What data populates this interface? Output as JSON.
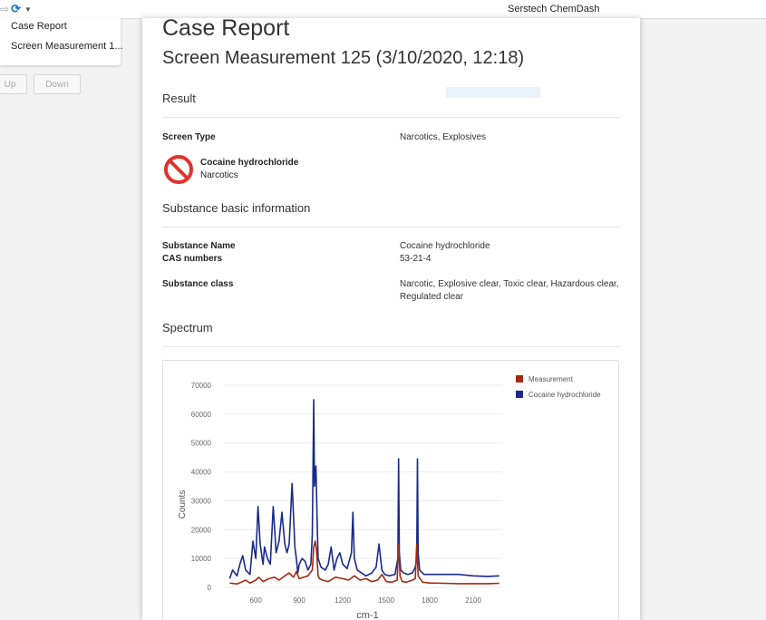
{
  "titlebar": {
    "icons": [
      "back-forward-icon",
      "app-logo-icon",
      "dropdown-icon"
    ],
    "title": "Serstech ChemDash"
  },
  "left_panel": {
    "items": [
      {
        "label": "Case Report"
      },
      {
        "label": "Screen Measurement 1..."
      }
    ],
    "up_label": "Up",
    "down_label": "Down"
  },
  "report": {
    "title": "Case Report",
    "subtitle": "Screen Measurement 125 (3/10/2020, 12:18)",
    "result": {
      "heading": "Result",
      "screen_type_label": "Screen Type",
      "screen_type_value": "Narcotics, Explosives",
      "substance_name": "Cocaine hydrochloride",
      "substance_class": "Narcotics",
      "status_icon": "prohibited-icon",
      "status_color": "#e0332e"
    },
    "basic_info": {
      "heading": "Substance basic information",
      "name_label": "Substance Name",
      "name_value": "Cocaine hydrochloride",
      "cas_label": "CAS numbers",
      "cas_value": "53-21-4",
      "class_label": "Substance class",
      "class_value": "Narcotic, Explosive clear, Toxic clear, Hazardous clear, Regulated clear"
    },
    "spectrum": {
      "heading": "Spectrum"
    }
  },
  "chart_data": {
    "type": "line",
    "xlabel": "cm-1",
    "ylabel": "Counts",
    "xlim": [
      380,
      2300
    ],
    "ylim": [
      0,
      70000
    ],
    "xticks": [
      600,
      900,
      1200,
      1500,
      1800,
      2100
    ],
    "yticks": [
      0,
      10000,
      20000,
      30000,
      40000,
      50000,
      60000,
      70000
    ],
    "grid": true,
    "legend_position": "top-right",
    "series": [
      {
        "name": "Measurement",
        "color": "#a32a12",
        "x": [
          420,
          470,
          500,
          530,
          560,
          600,
          620,
          650,
          690,
          730,
          760,
          800,
          830,
          860,
          880,
          900,
          930,
          960,
          990,
          1000,
          1010,
          1020,
          1030,
          1040,
          1060,
          1100,
          1150,
          1200,
          1240,
          1280,
          1320,
          1360,
          1400,
          1440,
          1470,
          1500,
          1540,
          1575,
          1585,
          1595,
          1610,
          1640,
          1680,
          1700,
          1710,
          1720,
          1750,
          1800,
          1900,
          2000,
          2100,
          2200,
          2280
        ],
        "y": [
          1500,
          1200,
          1800,
          2500,
          1500,
          2500,
          3500,
          2000,
          3000,
          3500,
          2500,
          4000,
          5000,
          3500,
          5500,
          3000,
          3500,
          4000,
          6000,
          14000,
          16000,
          12500,
          4000,
          3000,
          2500,
          2000,
          3500,
          3000,
          2500,
          4000,
          2500,
          3000,
          2000,
          2500,
          4500,
          2000,
          1800,
          2500,
          15000,
          4000,
          2000,
          1800,
          2500,
          3000,
          15000,
          4000,
          1800,
          1500,
          1400,
          1300,
          1300,
          1300,
          1400
        ]
      },
      {
        "name": "Cocaine hydrochloride",
        "color": "#1a2a8c",
        "x": [
          420,
          440,
          470,
          490,
          510,
          530,
          560,
          580,
          600,
          615,
          630,
          650,
          660,
          680,
          700,
          720,
          740,
          760,
          780,
          800,
          815,
          830,
          850,
          870,
          880,
          890,
          900,
          920,
          940,
          960,
          980,
          990,
          1000,
          1005,
          1015,
          1025,
          1030,
          1050,
          1080,
          1100,
          1120,
          1140,
          1160,
          1180,
          1200,
          1230,
          1260,
          1270,
          1280,
          1300,
          1330,
          1360,
          1400,
          1430,
          1450,
          1470,
          1490,
          1520,
          1560,
          1580,
          1585,
          1590,
          1600,
          1620,
          1650,
          1680,
          1700,
          1710,
          1715,
          1720,
          1730,
          1760,
          1800,
          1900,
          2000,
          2100,
          2200,
          2280
        ],
        "y": [
          3000,
          6000,
          4000,
          8000,
          11000,
          6000,
          4500,
          16000,
          10000,
          28000,
          15000,
          8000,
          14000,
          10000,
          8000,
          28000,
          12000,
          16000,
          26000,
          15000,
          12000,
          15000,
          36000,
          14000,
          10000,
          5000,
          8000,
          10000,
          9000,
          6000,
          8000,
          18000,
          65000,
          35000,
          42000,
          20000,
          10000,
          7000,
          6000,
          8000,
          14000,
          6000,
          10000,
          12000,
          8000,
          6500,
          12000,
          26000,
          10000,
          6000,
          5000,
          4000,
          5000,
          7000,
          15000,
          6000,
          4500,
          4000,
          4500,
          10000,
          44500,
          12000,
          6000,
          5000,
          4500,
          5000,
          7000,
          10000,
          44500,
          12000,
          6000,
          4500,
          4500,
          4500,
          4500,
          4000,
          3800,
          4000
        ]
      }
    ]
  }
}
